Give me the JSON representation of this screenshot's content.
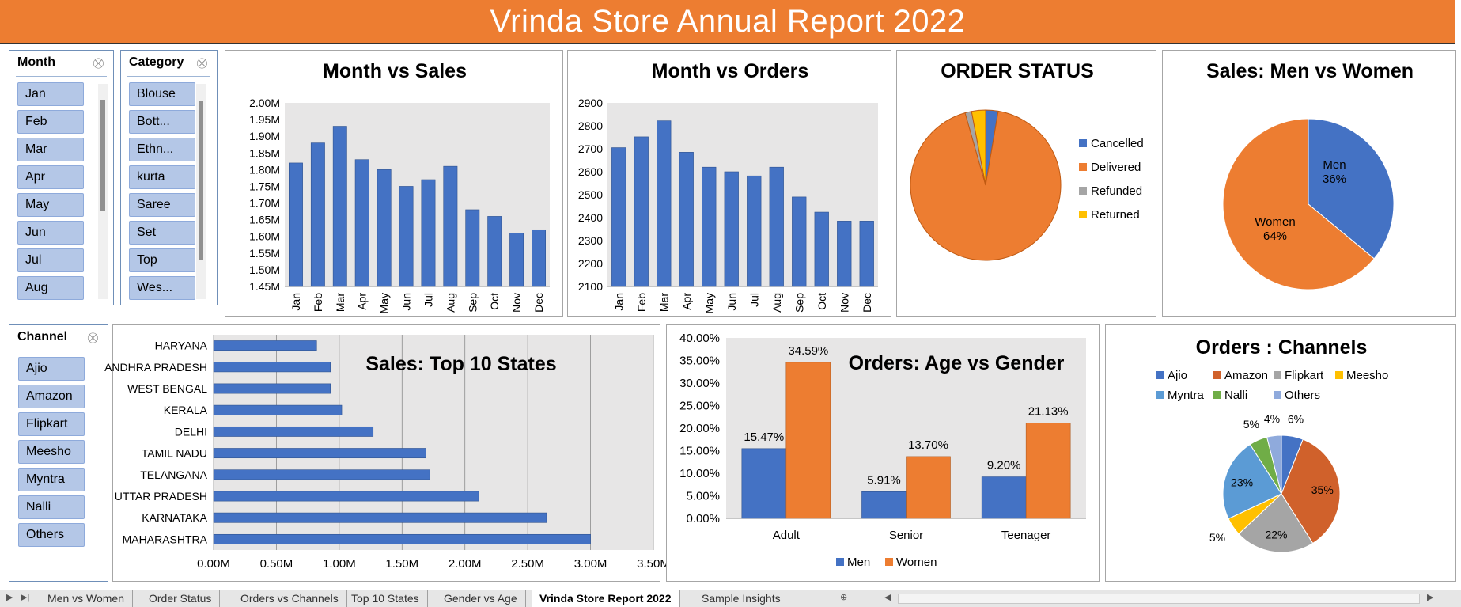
{
  "title": "Vrinda Store Annual Report 2022",
  "colors": {
    "blue": "#4472c4",
    "orange": "#ed7d31",
    "gray": "#a5a5a5",
    "yellow": "#ffc000",
    "lightblue": "#5b9bd5",
    "green": "#70ad47",
    "lavender": "#8faadc",
    "plot_bg": "#e7e6e6"
  },
  "slicers": {
    "month": {
      "title": "Month",
      "items": [
        "Jan",
        "Feb",
        "Mar",
        "Apr",
        "May",
        "Jun",
        "Jul",
        "Aug"
      ]
    },
    "category": {
      "title": "Category",
      "items": [
        "Blouse",
        "Bott...",
        "Ethn...",
        "kurta",
        "Saree",
        "Set",
        "Top",
        "Wes..."
      ]
    },
    "channel": {
      "title": "Channel",
      "items": [
        "Ajio",
        "Amazon",
        "Flipkart",
        "Meesho",
        "Myntra",
        "Nalli",
        "Others"
      ]
    }
  },
  "chart_data": [
    {
      "id": "month-sales",
      "type": "bar",
      "title": "Month vs Sales",
      "categories": [
        "Jan",
        "Feb",
        "Mar",
        "Apr",
        "May",
        "Jun",
        "Jul",
        "Aug",
        "Sep",
        "Oct",
        "Nov",
        "Dec"
      ],
      "values": [
        1.82,
        1.88,
        1.93,
        1.83,
        1.8,
        1.75,
        1.77,
        1.81,
        1.68,
        1.66,
        1.61,
        1.62
      ],
      "ylim": [
        1.45,
        2.0
      ],
      "yticks": [
        "2.00M",
        "1.95M",
        "1.90M",
        "1.85M",
        "1.80M",
        "1.75M",
        "1.70M",
        "1.65M",
        "1.60M",
        "1.55M",
        "1.50M",
        "1.45M"
      ]
    },
    {
      "id": "month-orders",
      "type": "bar",
      "title": "Month vs Orders",
      "categories": [
        "Jan",
        "Feb",
        "Mar",
        "Apr",
        "May",
        "Jun",
        "Jul",
        "Aug",
        "Sep",
        "Oct",
        "Nov",
        "Dec"
      ],
      "values": [
        2705,
        2752,
        2822,
        2685,
        2620,
        2600,
        2582,
        2620,
        2490,
        2424,
        2385,
        2385
      ],
      "ylim": [
        2100,
        2900
      ],
      "yticks": [
        "2900",
        "2800",
        "2700",
        "2600",
        "2500",
        "2400",
        "2300",
        "2200",
        "2100"
      ]
    },
    {
      "id": "order-status",
      "type": "pie",
      "title": "ORDER STATUS",
      "labels": [
        "Cancelled",
        "Delivered",
        "Refunded",
        "Returned"
      ],
      "values": [
        2.7,
        92.9,
        1.4,
        3.0
      ],
      "legend": "right"
    },
    {
      "id": "men-women",
      "type": "pie",
      "title": "Sales: Men vs Women",
      "labels": [
        "Men",
        "Women"
      ],
      "values": [
        36,
        64
      ],
      "data_labels": [
        "36%",
        "64%"
      ]
    },
    {
      "id": "top-states",
      "type": "bar",
      "orientation": "horizontal",
      "title": "Sales: Top 10 States",
      "categories": [
        "HARYANA",
        "ANDHRA PRADESH",
        "WEST BENGAL",
        "KERALA",
        "DELHI",
        "TAMIL NADU",
        "TELANGANA",
        "UTTAR PRADESH",
        "KARNATAKA",
        "MAHARASHTRA"
      ],
      "values": [
        0.82,
        0.93,
        0.93,
        1.02,
        1.27,
        1.69,
        1.72,
        2.11,
        2.65,
        3.0
      ],
      "xlim": [
        0,
        3.5
      ],
      "xticks": [
        "0.00M",
        "0.50M",
        "1.00M",
        "1.50M",
        "2.00M",
        "2.50M",
        "3.00M",
        "3.50M"
      ]
    },
    {
      "id": "age-gender",
      "type": "bar",
      "title": "Orders: Age vs Gender",
      "categories": [
        "Adult",
        "Senior",
        "Teenager"
      ],
      "series": [
        {
          "name": "Men",
          "values": [
            15.47,
            5.91,
            9.2
          ],
          "labels": [
            "15.47%",
            "5.91%",
            "9.20%"
          ]
        },
        {
          "name": "Women",
          "values": [
            34.59,
            13.7,
            21.13
          ],
          "labels": [
            "34.59%",
            "13.70%",
            "21.13%"
          ]
        }
      ],
      "ylim": [
        0,
        40
      ],
      "yticks": [
        "40.00%",
        "35.00%",
        "30.00%",
        "25.00%",
        "20.00%",
        "15.00%",
        "10.00%",
        "5.00%",
        "0.00%"
      ],
      "legend": "bottom"
    },
    {
      "id": "channels",
      "type": "pie",
      "title": "Orders : Channels",
      "labels": [
        "Ajio",
        "Amazon",
        "Flipkart",
        "Meesho",
        "Myntra",
        "Nalli",
        "Others"
      ],
      "values": [
        6,
        35,
        22,
        5,
        23,
        5,
        4
      ],
      "data_labels": [
        "6%",
        "35%",
        "22%",
        "5%",
        "23%",
        "5%",
        "4%"
      ],
      "legend": "top"
    }
  ],
  "sheet_tabs": [
    "Men vs Women",
    "Order Status",
    "Orders vs Channels",
    "Top 10 States",
    "Gender vs Age",
    "Vrinda Store Report 2022",
    "Sample Insights"
  ],
  "active_tab": "Vrinda Store Report 2022"
}
